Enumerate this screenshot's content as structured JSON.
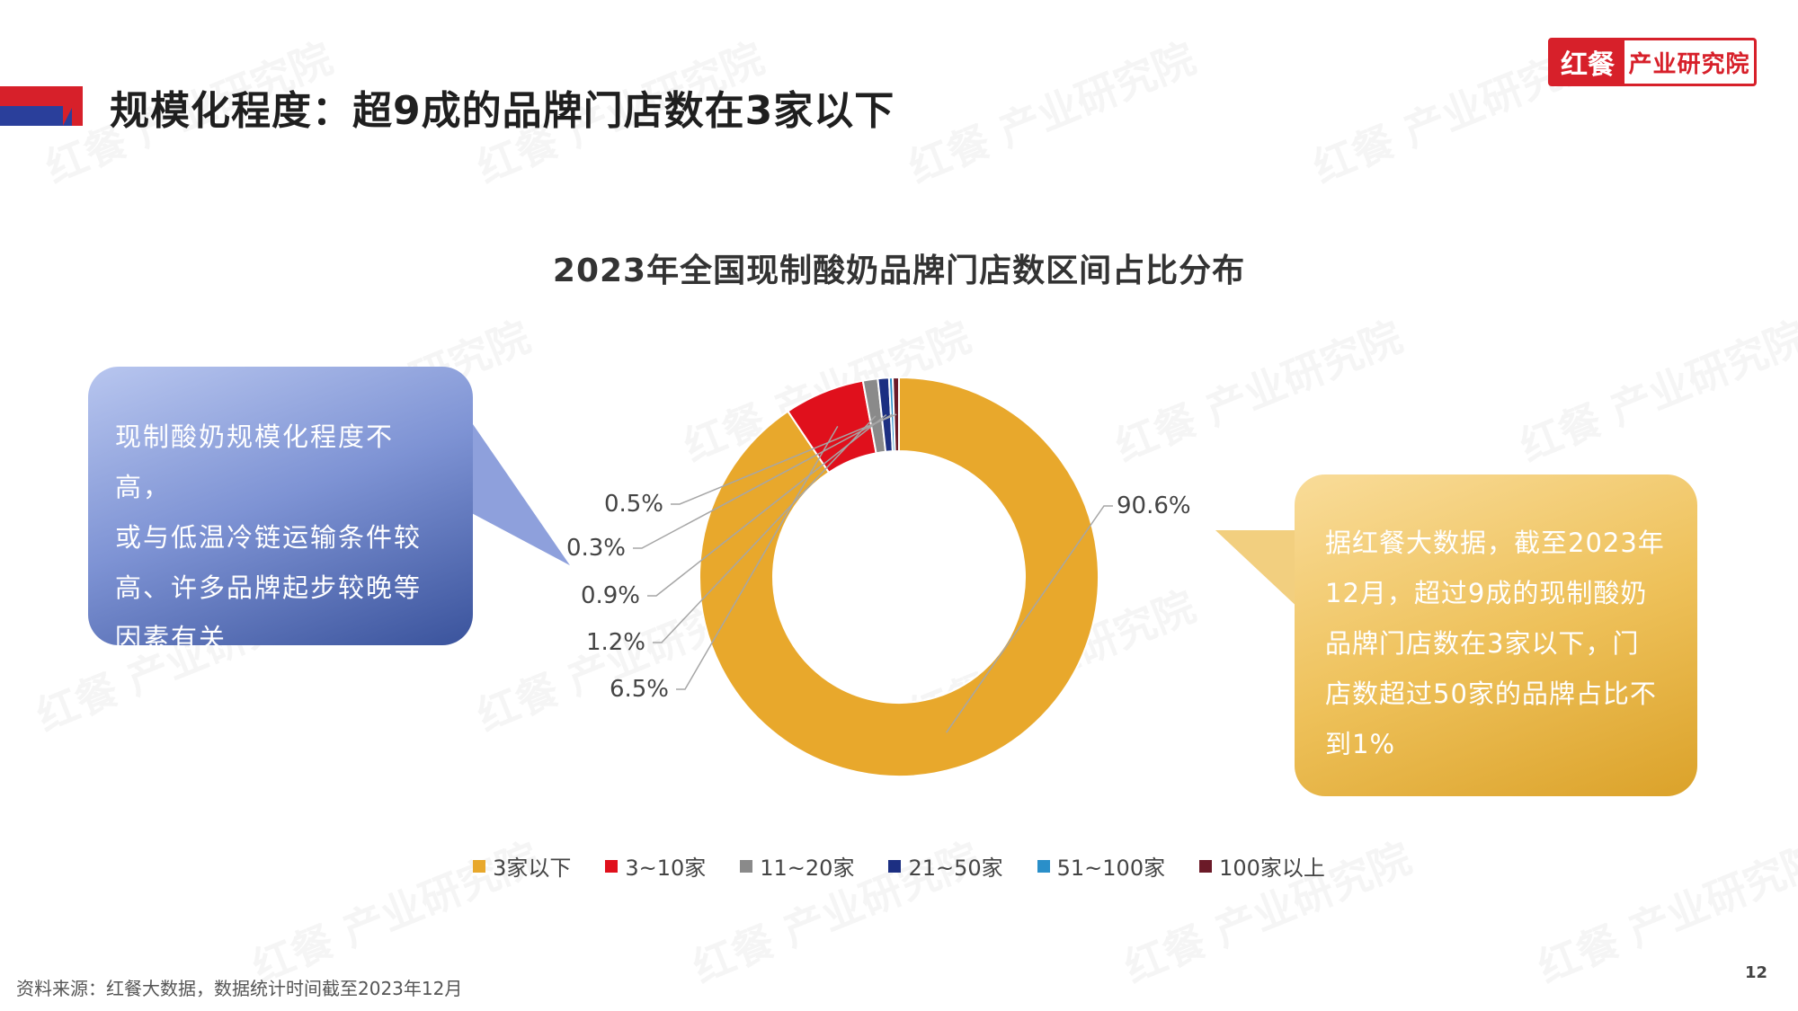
{
  "header": {
    "title": "规模化程度：超9成的品牌门店数在3家以下",
    "logo_left": "红餐",
    "logo_right": "产业研究院"
  },
  "chart_data": {
    "type": "pie",
    "donut": true,
    "title": "2023年全国现制酸奶品牌门店数区间占比分布",
    "categories": [
      "3家以下",
      "3~10家",
      "11~20家",
      "21~50家",
      "51~100家",
      "100家以上"
    ],
    "values": [
      90.6,
      6.5,
      1.2,
      0.9,
      0.3,
      0.5
    ],
    "data_labels": [
      "90.6%",
      "6.5%",
      "1.2%",
      "0.9%",
      "0.3%",
      "0.5%"
    ],
    "colors": [
      "#e8a82c",
      "#e0101c",
      "#8a8a8a",
      "#1c2f82",
      "#2a8fc9",
      "#6b1a28"
    ],
    "legend_position": "bottom"
  },
  "callout_left": {
    "lines": [
      "现制酸奶规模化程度不高，",
      "或与低温冷链运输条件较",
      "高、许多品牌起步较晚等",
      "因素有关"
    ]
  },
  "callout_right": {
    "lines": [
      "据红餐大数据，截至2023年",
      "12月，超过9成的现制酸奶",
      "品牌门店数在3家以下，门",
      "店数超过50家的品牌占比不",
      "到1%"
    ]
  },
  "footer": {
    "source": "资料来源：红餐大数据，数据统计时间截至2023年12月",
    "page_number": "12"
  },
  "watermark": {
    "text": "红餐 产业研究院"
  }
}
